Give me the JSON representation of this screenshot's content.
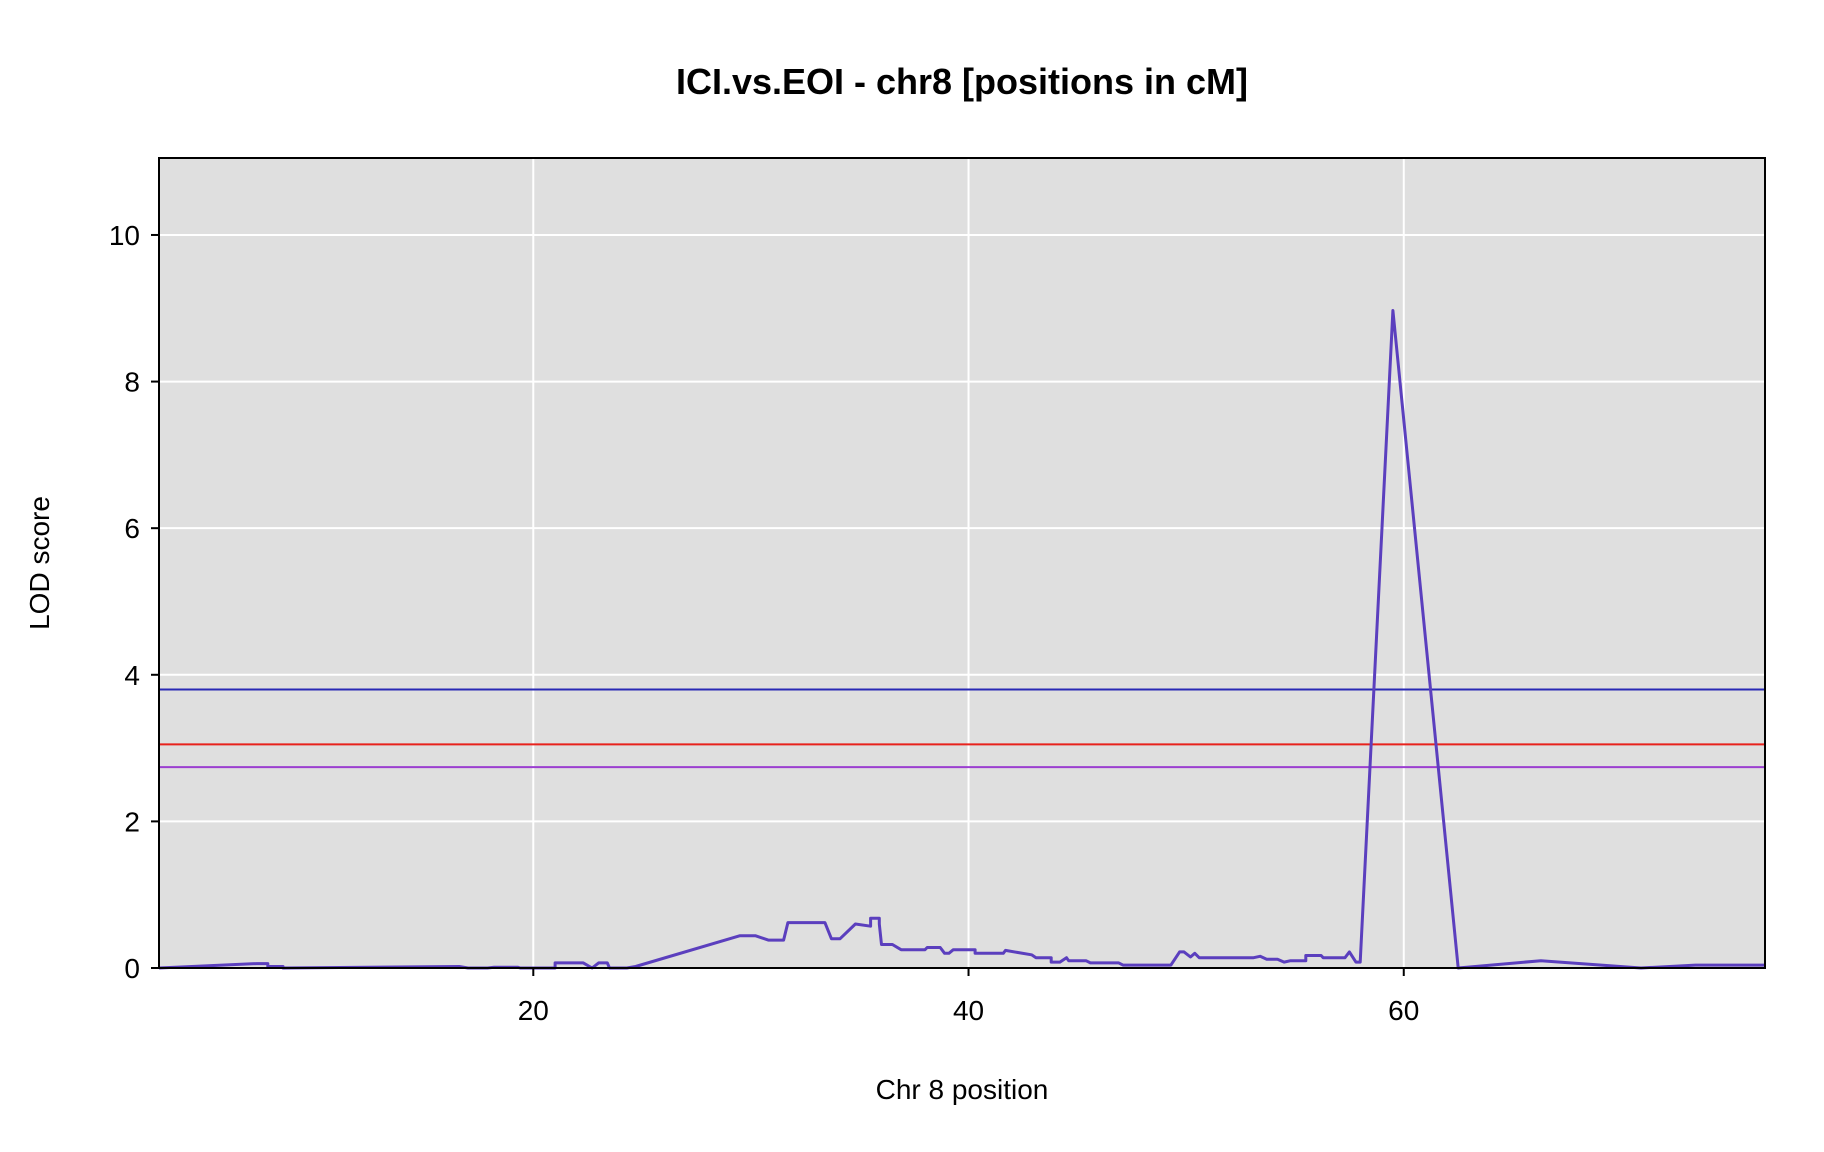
{
  "chart_data": {
    "type": "line",
    "title": "ICI.vs.EOI - chr8 [positions in cM]",
    "xlabel": "Chr 8 position",
    "ylabel": "LOD score",
    "xlim": [
      2.8,
      76.6
    ],
    "ylim": [
      0,
      11.05
    ],
    "x_ticks": [
      20,
      40,
      60
    ],
    "y_ticks": [
      0,
      2,
      4,
      6,
      8,
      10
    ],
    "x_tick_labels": [
      "20",
      "40",
      "60"
    ],
    "y_tick_labels": [
      "0",
      "2",
      "4",
      "6",
      "8",
      "10"
    ],
    "grid": true,
    "legend": "none",
    "colors": {
      "background": "#dfdfdf",
      "grid": "#ffffff",
      "series": "#5b3fbe",
      "threshold_high": "#2828b4",
      "threshold_mid": "#e8221c",
      "threshold_low": "#9b3fd0"
    },
    "thresholds": [
      {
        "value": 3.8,
        "color": "#2828b4"
      },
      {
        "value": 3.05,
        "color": "#e8221c"
      },
      {
        "value": 2.74,
        "color": "#9b3fd0"
      }
    ],
    "series": [
      {
        "points": [
          [
            2.8,
            0.0
          ],
          [
            7.3,
            0.06
          ],
          [
            7.8,
            0.06
          ],
          [
            7.8,
            0.02
          ],
          [
            8.5,
            0.02
          ],
          [
            8.5,
            0.0
          ],
          [
            16.6,
            0.02
          ],
          [
            17.0,
            0.0
          ],
          [
            17.9,
            0.0
          ],
          [
            18.2,
            0.01
          ],
          [
            19.3,
            0.01
          ],
          [
            19.4,
            0.0
          ],
          [
            21.0,
            0.0
          ],
          [
            21.0,
            0.07
          ],
          [
            22.3,
            0.07
          ],
          [
            22.7,
            0.0
          ],
          [
            23.0,
            0.07
          ],
          [
            23.4,
            0.07
          ],
          [
            23.5,
            0.0
          ],
          [
            24.3,
            0.0
          ],
          [
            24.7,
            0.02
          ],
          [
            29.5,
            0.44
          ],
          [
            30.2,
            0.44
          ],
          [
            30.8,
            0.38
          ],
          [
            31.5,
            0.38
          ],
          [
            31.7,
            0.62
          ],
          [
            33.4,
            0.62
          ],
          [
            33.7,
            0.4
          ],
          [
            34.1,
            0.4
          ],
          [
            34.8,
            0.6
          ],
          [
            35.5,
            0.57
          ],
          [
            35.5,
            0.68
          ],
          [
            35.9,
            0.68
          ],
          [
            35.9,
            0.6
          ],
          [
            36.0,
            0.32
          ],
          [
            36.5,
            0.32
          ],
          [
            36.9,
            0.25
          ],
          [
            38.0,
            0.25
          ],
          [
            38.1,
            0.28
          ],
          [
            38.7,
            0.28
          ],
          [
            38.9,
            0.2
          ],
          [
            39.1,
            0.2
          ],
          [
            39.3,
            0.25
          ],
          [
            40.3,
            0.25
          ],
          [
            40.3,
            0.2
          ],
          [
            41.6,
            0.2
          ],
          [
            41.7,
            0.24
          ],
          [
            42.9,
            0.18
          ],
          [
            43.1,
            0.14
          ],
          [
            43.8,
            0.14
          ],
          [
            43.8,
            0.08
          ],
          [
            44.2,
            0.08
          ],
          [
            44.5,
            0.14
          ],
          [
            44.6,
            0.1
          ],
          [
            45.4,
            0.1
          ],
          [
            45.6,
            0.07
          ],
          [
            46.9,
            0.07
          ],
          [
            47.1,
            0.04
          ],
          [
            49.0,
            0.04
          ],
          [
            49.3,
            0.04
          ],
          [
            49.7,
            0.22
          ],
          [
            49.9,
            0.22
          ],
          [
            50.2,
            0.15
          ],
          [
            50.4,
            0.2
          ],
          [
            50.6,
            0.14
          ],
          [
            53.1,
            0.14
          ],
          [
            53.4,
            0.16
          ],
          [
            53.7,
            0.12
          ],
          [
            54.2,
            0.12
          ],
          [
            54.5,
            0.08
          ],
          [
            54.8,
            0.1
          ],
          [
            55.5,
            0.1
          ],
          [
            55.5,
            0.17
          ],
          [
            56.2,
            0.17
          ],
          [
            56.3,
            0.14
          ],
          [
            57.3,
            0.14
          ],
          [
            57.5,
            0.22
          ],
          [
            57.8,
            0.08
          ],
          [
            58.0,
            0.08
          ],
          [
            59.5,
            8.97
          ],
          [
            62.5,
            0.0
          ],
          [
            66.3,
            0.1
          ],
          [
            70.9,
            0.0
          ],
          [
            73.4,
            0.04
          ],
          [
            76.6,
            0.04
          ]
        ]
      }
    ]
  }
}
